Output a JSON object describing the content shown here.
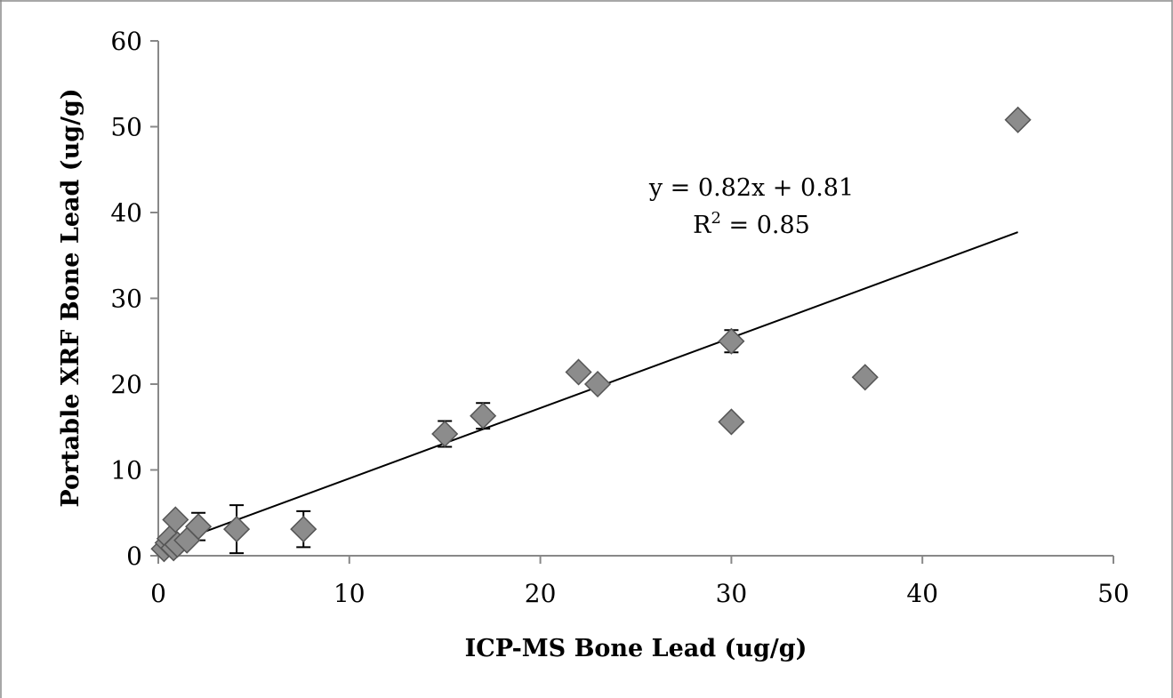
{
  "chart_data": {
    "type": "scatter",
    "xlabel": "ICP-MS Bone Lead (ug/g)",
    "ylabel": "Portable XRF Bone Lead (ug/g)",
    "xlim": [
      0,
      50
    ],
    "ylim": [
      0,
      60
    ],
    "x_ticks": [
      "0",
      "10",
      "20",
      "30",
      "40",
      "50"
    ],
    "y_ticks": [
      "0",
      "10",
      "20",
      "30",
      "40",
      "50",
      "60"
    ],
    "grid": false,
    "legend": "none",
    "marker": "diamond",
    "marker_color": "#8c8c8c",
    "series": [
      {
        "points": [
          {
            "x": 0.3,
            "y": 0.8,
            "err": 0.4
          },
          {
            "x": 0.5,
            "y": 1.5,
            "err": 0.4
          },
          {
            "x": 0.6,
            "y": 2.0,
            "err": 0.4
          },
          {
            "x": 0.8,
            "y": 0.9,
            "err": 0.4
          },
          {
            "x": 1.0,
            "y": 1.3,
            "err": 0.4
          },
          {
            "x": 1.5,
            "y": 1.8,
            "err": 0.4
          },
          {
            "x": 0.9,
            "y": 4.2,
            "err": 0.6
          },
          {
            "x": 2.1,
            "y": 3.4,
            "err": 1.6
          },
          {
            "x": 4.1,
            "y": 3.1,
            "err": 2.8
          },
          {
            "x": 7.6,
            "y": 3.1,
            "err": 2.1
          },
          {
            "x": 15.0,
            "y": 14.2,
            "err": 1.5
          },
          {
            "x": 17.0,
            "y": 16.3,
            "err": 1.5
          },
          {
            "x": 22.0,
            "y": 21.4,
            "err": 0.6
          },
          {
            "x": 23.0,
            "y": 20.0,
            "err": 0.6
          },
          {
            "x": 30.0,
            "y": 25.0,
            "err": 1.3
          },
          {
            "x": 30.0,
            "y": 15.6,
            "err": 0.5
          },
          {
            "x": 37.0,
            "y": 20.8,
            "err": 0.6
          },
          {
            "x": 45.0,
            "y": 50.8,
            "err": 0.6
          }
        ]
      }
    ],
    "trendline": {
      "slope": 0.82,
      "intercept": 0.81,
      "x_range": [
        0.4,
        45
      ],
      "equation": "y = 0.82x + 0.81",
      "r2_label": "R",
      "r2_exponent": "2",
      "r2_value": " = 0.85"
    }
  }
}
